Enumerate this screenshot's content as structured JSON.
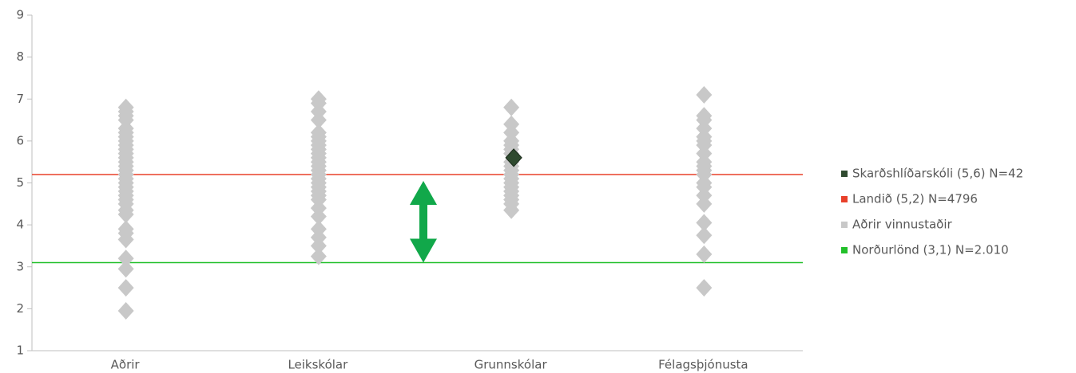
{
  "chart_data": {
    "type": "scatter",
    "categories": [
      "Aðrir",
      "Leikskólar",
      "Grunnskólar",
      "Félagsþjónusta"
    ],
    "ylim": [
      1,
      9
    ],
    "yticks": [
      1,
      2,
      3,
      4,
      5,
      6,
      7,
      8,
      9
    ],
    "series": [
      {
        "name": "Skarðshlíðarskóli (5,6) N=42",
        "color": "#2f4a2f",
        "kind": "points",
        "values": [
          null,
          null,
          5.6,
          null
        ]
      },
      {
        "name": "Landið (5,2) N=4796",
        "color": "#e8402a",
        "kind": "line",
        "value": 5.2
      },
      {
        "name": "Aðrir vinnustaðir",
        "color": "#c8c8c8",
        "kind": "groups",
        "values": [
          [
            1.95,
            2.5,
            2.95,
            3.2,
            3.65,
            3.8,
            3.9,
            4.25,
            4.35,
            4.5,
            4.6,
            4.7,
            4.8,
            4.9,
            5.0,
            5.1,
            5.2,
            5.3,
            5.4,
            5.5,
            5.6,
            5.7,
            5.8,
            5.9,
            6.0,
            6.1,
            6.2,
            6.3,
            6.5,
            6.6,
            6.7,
            6.8
          ],
          [
            3.25,
            3.5,
            3.7,
            3.9,
            4.2,
            4.4,
            4.6,
            4.7,
            4.8,
            4.9,
            5.0,
            5.1,
            5.2,
            5.3,
            5.4,
            5.5,
            5.6,
            5.7,
            5.8,
            5.9,
            6.0,
            6.1,
            6.2,
            6.5,
            6.7,
            6.9,
            7.0
          ],
          [
            4.35,
            4.5,
            4.6,
            4.7,
            4.8,
            4.9,
            5.0,
            5.1,
            5.2,
            5.3,
            5.4,
            5.5,
            5.7,
            5.8,
            5.9,
            6.0,
            6.2,
            6.4,
            6.8
          ],
          [
            2.5,
            3.3,
            3.75,
            4.05,
            4.5,
            4.7,
            4.9,
            5.0,
            5.2,
            5.3,
            5.4,
            5.5,
            5.7,
            5.9,
            6.0,
            6.1,
            6.3,
            6.5,
            6.6,
            7.1
          ]
        ]
      },
      {
        "name": "Norðurlönd (3,1) N=2.010",
        "color": "#22c02a",
        "kind": "line",
        "value": 3.1
      }
    ]
  }
}
